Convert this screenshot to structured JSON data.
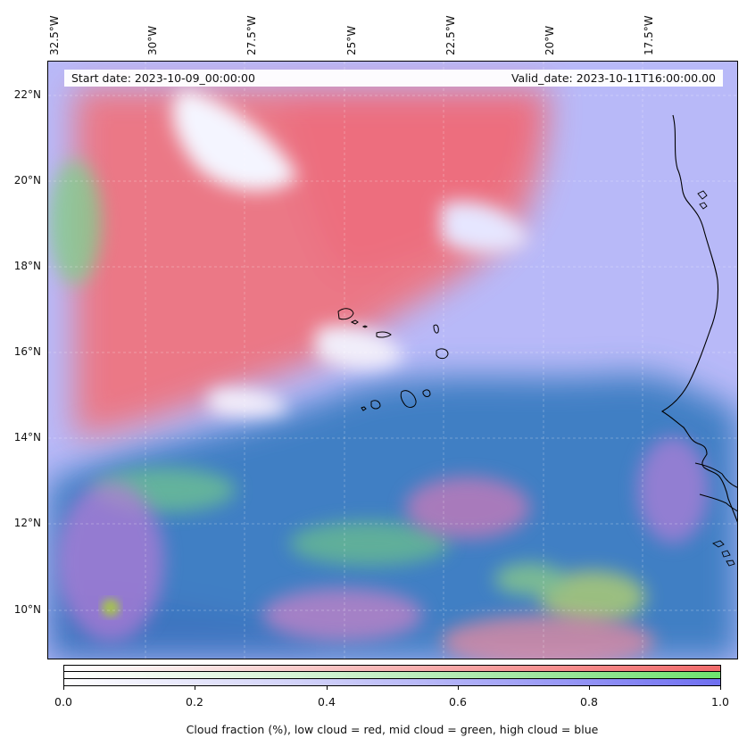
{
  "map": {
    "start_date_label": "Start date: 2023-10-09_00:00:00",
    "valid_date_label": "Valid_date: 2023-10-11T16:00:00.00",
    "lon_labels": [
      "32.5°W",
      "30°W",
      "27.5°W",
      "25°W",
      "22.5°W",
      "20°W",
      "17.5°W"
    ],
    "lat_labels": [
      "22°N",
      "20°N",
      "18°N",
      "16°N",
      "14°N",
      "12°N",
      "10°N"
    ],
    "colors": {
      "low_cloud": "#f06b6b",
      "mid_cloud": "#6ee36e",
      "high_cloud": "#6f6ff0",
      "ocean_deep": "#3f7fc0",
      "high_cloud_light": "#b9baf8"
    }
  },
  "colorbar": {
    "ticks": [
      "0.0",
      "0.2",
      "0.4",
      "0.6",
      "0.8",
      "1.0"
    ],
    "caption": "Cloud fraction (%), low cloud = red, mid cloud = green, high cloud = blue"
  }
}
